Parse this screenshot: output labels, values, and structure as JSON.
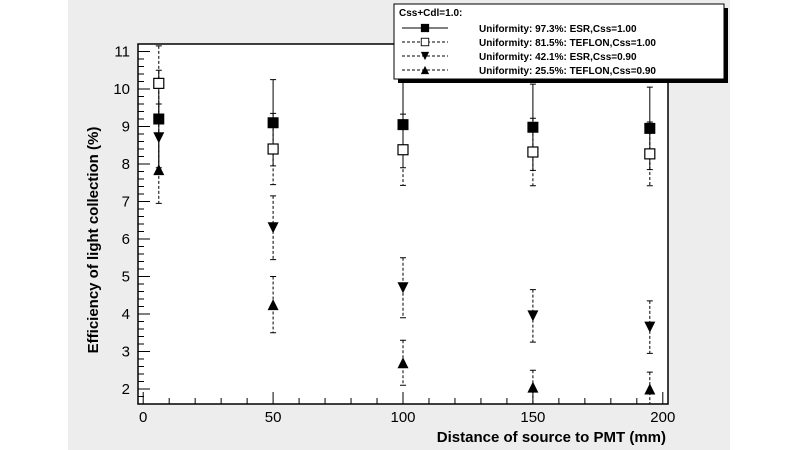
{
  "chart_data": {
    "type": "scatter",
    "xlabel": "Distance of source to PMT (mm)",
    "ylabel": "Efficiency of light collection (%)",
    "xlim": [
      -2,
      202
    ],
    "ylim": [
      1.6,
      11.2
    ],
    "x_ticks": [
      0,
      50,
      100,
      150,
      200
    ],
    "y_ticks": [
      2,
      3,
      4,
      5,
      6,
      7,
      8,
      9,
      10,
      11
    ],
    "grid": false,
    "legend_position": "top-right",
    "legend_header": "Css+Cdl=1.0:",
    "series": [
      {
        "name": "Uniformity: 97.3%: ESR,Css=1.00",
        "marker": "filled-square",
        "line": "solid",
        "x": [
          6,
          50,
          100,
          150,
          195
        ],
        "y": [
          9.2,
          9.1,
          9.05,
          8.98,
          8.95
        ],
        "err": [
          1.3,
          1.15,
          1.15,
          1.15,
          1.1
        ]
      },
      {
        "name": "Uniformity: 81.5%: TEFLON,Css=1.00",
        "marker": "open-square",
        "line": "dashed",
        "x": [
          6,
          50,
          100,
          150,
          195
        ],
        "y": [
          10.15,
          8.4,
          8.38,
          8.32,
          8.27
        ],
        "err": [
          1.0,
          0.95,
          0.95,
          0.9,
          0.85
        ]
      },
      {
        "name": "Uniformity: 42.1%: ESR,Css=0.90",
        "marker": "filled-triangle-down",
        "line": "dashed",
        "x": [
          6,
          50,
          100,
          150,
          195
        ],
        "y": [
          8.7,
          6.3,
          4.7,
          3.95,
          3.65
        ],
        "err": [
          0.9,
          0.85,
          0.8,
          0.7,
          0.7
        ]
      },
      {
        "name": "Uniformity: 25.5%: TEFLON,Css=0.90",
        "marker": "filled-triangle-up",
        "line": "dashed",
        "x": [
          6,
          50,
          100,
          150,
          195
        ],
        "y": [
          7.85,
          4.25,
          2.7,
          2.05,
          2.0
        ],
        "err": [
          0.9,
          0.75,
          0.6,
          0.45,
          0.45
        ]
      }
    ]
  }
}
